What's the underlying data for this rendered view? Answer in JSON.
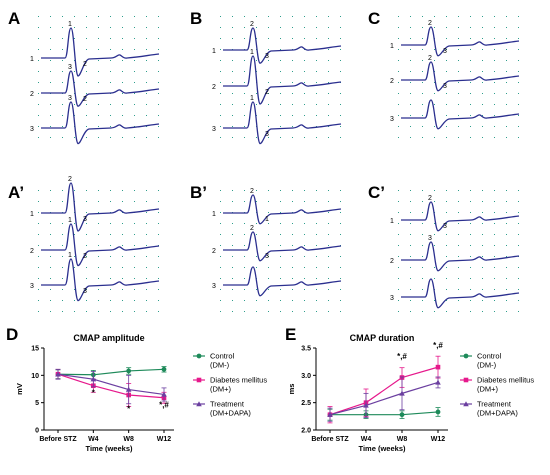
{
  "panels": [
    {
      "id": "A",
      "label": "A",
      "traces": [
        "1",
        "2",
        "3"
      ],
      "small": [
        "1",
        "2",
        "3",
        "2",
        "3"
      ]
    },
    {
      "id": "B",
      "label": "B",
      "traces": [
        "1",
        "2",
        "3"
      ],
      "small": [
        "2",
        "3",
        "1",
        "2",
        "1",
        "3"
      ]
    },
    {
      "id": "C",
      "label": "C",
      "traces": [
        "1",
        "2",
        "3"
      ],
      "small": [
        "2",
        "3",
        "2",
        "3"
      ]
    },
    {
      "id": "A2",
      "label": "A’",
      "traces": [
        "1",
        "2",
        "3"
      ],
      "small": [
        "2",
        "3",
        "1",
        "2",
        "1",
        "3"
      ]
    },
    {
      "id": "B2",
      "label": "B’",
      "traces": [
        "1",
        "2",
        "3"
      ],
      "small": [
        "2",
        "1",
        "2",
        "3"
      ]
    },
    {
      "id": "C2",
      "label": "C’",
      "traces": [
        "1",
        "2",
        "3"
      ],
      "small": [
        "2",
        "3",
        "3"
      ]
    }
  ],
  "chart_colors": {
    "control": "#1e8a5a",
    "diabetes": "#e6198c",
    "treatment": "#6b3fa0",
    "trace": "#2b2f8f",
    "grid": "#2e9e8c"
  },
  "chart_data": [
    {
      "type": "line",
      "panel_label": "D",
      "title": "CMAP amplitude",
      "xlabel": "Time (weeks)",
      "ylabel": "mV",
      "categories": [
        "Before STZ",
        "W4",
        "W8",
        "W12"
      ],
      "ylim": [
        0,
        15
      ],
      "yticks": [
        "0",
        "5",
        "10",
        "15"
      ],
      "series": [
        {
          "name": "Control\n(DM-)",
          "values": [
            10.2,
            10.1,
            10.8,
            11.1
          ],
          "errors": [
            0.8,
            0.8,
            0.6,
            0.5
          ]
        },
        {
          "name": "Diabetes mellitus\n(DM+)",
          "values": [
            10.2,
            8.1,
            6.4,
            5.9
          ],
          "errors": [
            0.9,
            1.2,
            2.1,
            1.0
          ]
        },
        {
          "name": "Treatment\n(DM+DAPA)",
          "values": [
            10.2,
            9.3,
            7.4,
            6.5
          ],
          "errors": [
            0.9,
            1.4,
            2.6,
            1.2
          ]
        }
      ],
      "annotations": [
        {
          "x": "W4",
          "y": 6.3,
          "text": "*"
        },
        {
          "x": "W8",
          "y": 3.4,
          "text": "*"
        },
        {
          "x": "W12",
          "y": 4.1,
          "text": "*,#"
        }
      ],
      "legend_labels": [
        "Control",
        "(DM-)",
        "Diabetes mellitus",
        "(DM+)",
        "Treatment",
        "(DM+DAPA)"
      ]
    },
    {
      "type": "line",
      "panel_label": "E",
      "title": "CMAP duration",
      "xlabel": "Time (weeks)",
      "ylabel": "ms",
      "categories": [
        "Before STZ",
        "W4",
        "W8",
        "W12"
      ],
      "ylim": [
        2.0,
        3.5
      ],
      "yticks": [
        "2.0",
        "2.5",
        "3.0",
        "3.5"
      ],
      "series": [
        {
          "name": "Control\n(DM-)",
          "values": [
            2.28,
            2.28,
            2.28,
            2.33
          ],
          "errors": [
            0.1,
            0.07,
            0.07,
            0.08
          ]
        },
        {
          "name": "Diabetes mellitus\n(DM+)",
          "values": [
            2.28,
            2.5,
            2.96,
            3.15
          ],
          "errors": [
            0.15,
            0.25,
            0.18,
            0.2
          ]
        },
        {
          "name": "Treatment\n(DM+DAPA)",
          "values": [
            2.28,
            2.45,
            2.67,
            2.87
          ],
          "errors": [
            0.12,
            0.22,
            0.3,
            0.1
          ]
        }
      ],
      "annotations": [
        {
          "x": "W8",
          "y": 3.3,
          "text": "*,#"
        },
        {
          "x": "W12",
          "y": 3.5,
          "text": "*,#"
        }
      ],
      "legend_labels": [
        "Control",
        "(DM-)",
        "Diabetes mellitus",
        "(DM+)",
        "Treatment",
        "(DM+DAPA)"
      ]
    }
  ]
}
